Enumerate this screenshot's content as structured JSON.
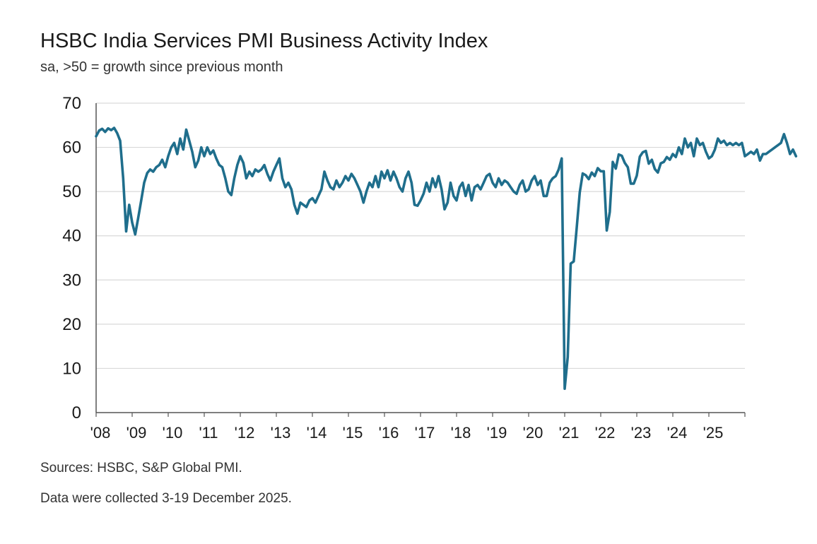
{
  "chart_data": {
    "type": "line",
    "title": "HSBC India Services PMI Business Activity Index",
    "subtitle": "sa, >50 = growth since previous month",
    "ylim": [
      0,
      70
    ],
    "y_ticks": [
      "70",
      "60",
      "50",
      "40",
      "30",
      "20",
      "10",
      "0"
    ],
    "x_ticks": [
      "'08",
      "'09",
      "'10",
      "'11",
      "'12",
      "'13",
      "'14",
      "'15",
      "'16",
      "'17",
      "'18",
      "'19",
      "'20",
      "'21",
      "'22",
      "'23",
      "'24",
      "'25"
    ],
    "grid": "horizontal",
    "line_color": "#1f6e8c",
    "series": [
      {
        "x_start": "2008-01",
        "frequency": "monthly",
        "values": [
          62.5,
          63.8,
          64.2,
          63.5,
          64.3,
          63.9,
          64.4,
          63.2,
          61.5,
          53.0,
          41.0,
          47.0,
          43.0,
          40.3,
          44.0,
          48.0,
          52.0,
          54.2,
          55.0,
          54.5,
          55.5,
          56.0,
          57.2,
          55.5,
          58.0,
          60.0,
          61.0,
          58.5,
          62.0,
          59.5,
          64.0,
          61.5,
          59.0,
          55.5,
          57.0,
          60.0,
          58.0,
          60.0,
          58.5,
          59.3,
          57.5,
          56.0,
          55.5,
          53.0,
          50.0,
          49.2,
          53.0,
          56.0,
          58.0,
          56.5,
          53.0,
          54.5,
          53.5,
          55.0,
          54.5,
          55.0,
          56.0,
          54.0,
          52.5,
          54.5,
          56.0,
          57.5,
          53.0,
          51.0,
          52.0,
          50.5,
          47.0,
          45.0,
          47.5,
          47.0,
          46.5,
          48.0,
          48.5,
          47.5,
          49.0,
          50.5,
          54.5,
          52.5,
          51.0,
          50.5,
          52.5,
          51.0,
          52.0,
          53.5,
          52.5,
          54.0,
          53.0,
          51.5,
          50.0,
          47.5,
          50.0,
          52.0,
          51.0,
          53.5,
          51.0,
          54.5,
          53.0,
          54.8,
          52.5,
          54.5,
          53.0,
          51.0,
          50.0,
          53.0,
          54.5,
          52.0,
          47.0,
          46.8,
          48.0,
          49.5,
          52.0,
          50.0,
          53.0,
          51.0,
          53.5,
          50.5,
          46.0,
          47.5,
          52.0,
          49.0,
          48.0,
          51.0,
          52.0,
          49.0,
          51.5,
          48.0,
          51.0,
          51.5,
          50.5,
          52.0,
          53.5,
          54.0,
          52.0,
          51.0,
          53.0,
          51.5,
          52.5,
          52.0,
          51.0,
          50.0,
          49.5,
          51.5,
          52.5,
          50.0,
          50.5,
          52.5,
          53.5,
          51.5,
          52.5,
          49.0,
          49.0,
          52.0,
          53.0,
          53.5,
          55.0,
          57.5,
          5.4,
          12.6,
          33.7,
          34.2,
          41.8,
          49.8,
          54.1,
          53.7,
          52.8,
          54.3,
          53.5,
          55.3,
          54.6,
          54.6,
          41.2,
          45.4,
          56.7,
          55.2,
          58.4,
          58.1,
          56.5,
          55.5,
          51.8,
          51.8,
          53.6,
          57.9,
          58.9,
          59.2,
          56.3,
          57.2,
          55.1,
          54.3,
          56.4,
          56.7,
          57.8,
          57.2,
          58.5,
          57.8,
          60.0,
          58.5,
          62.0,
          60.0,
          61.0,
          58.0,
          62.0,
          60.5,
          61.0,
          59.0,
          57.5,
          58.0,
          59.5,
          62.0,
          61.0,
          61.5,
          60.5,
          61.0,
          60.5,
          61.0,
          60.5,
          61.0,
          58.0,
          58.5,
          59.0,
          58.5,
          59.5,
          57.0,
          58.5,
          58.5,
          59.0,
          59.5,
          60.0,
          60.5,
          61.0,
          63.0,
          61.0,
          58.5,
          59.5,
          58.0
        ]
      }
    ]
  },
  "footer": {
    "source": "Sources: HSBC, S&P Global PMI.",
    "collection": "Data were collected 3-19 December 2025."
  }
}
